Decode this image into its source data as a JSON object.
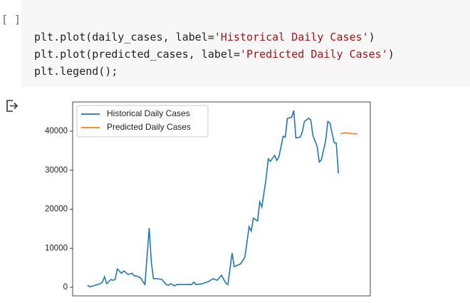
{
  "cell": {
    "prompt": "[ ]",
    "code": [
      [
        "plt.plot(daily_cases, label=",
        "'Historical Daily Cases'",
        ")"
      ],
      [
        "plt.plot(predicted_cases, label=",
        "'Predicted Daily Cases'",
        ")"
      ],
      [
        "plt.legend();"
      ]
    ]
  },
  "chart_data": {
    "type": "line",
    "xlim": [
      -7,
      133
    ],
    "ylim": [
      -2200,
      47500
    ],
    "yticks": [
      0,
      10000,
      20000,
      30000,
      40000
    ],
    "legend": "upper left",
    "series": [
      {
        "name": "Historical Daily Cases",
        "color": "#1f77b4",
        "x": [
          0,
          1,
          6,
          7,
          8,
          9,
          11,
          12,
          13,
          14,
          16,
          17,
          18,
          19,
          21,
          22,
          23,
          25,
          26,
          27,
          29,
          30,
          31,
          33,
          35,
          37,
          38,
          39,
          41,
          42,
          45,
          49,
          50,
          51,
          54,
          57,
          59,
          61,
          63,
          65,
          66,
          68,
          69,
          72,
          74,
          76,
          77,
          78,
          80,
          81,
          82,
          84,
          85,
          86,
          88,
          89,
          90,
          92,
          93,
          94,
          96,
          97,
          98,
          100,
          101,
          102,
          104,
          105,
          106,
          108,
          109,
          110,
          112,
          113,
          114,
          116,
          117,
          118
        ],
        "values": [
          500,
          100,
          900,
          1300,
          2700,
          900,
          2000,
          1800,
          2000,
          4700,
          3600,
          4200,
          3800,
          3300,
          3600,
          2900,
          2900,
          2400,
          1500,
          700,
          15200,
          6400,
          2200,
          2200,
          2000,
          700,
          500,
          900,
          400,
          700,
          700,
          700,
          1300,
          700,
          900,
          1500,
          2200,
          1800,
          3100,
          1100,
          700,
          8800,
          5300,
          6000,
          7700,
          15500,
          14400,
          17700,
          17000,
          21900,
          20600,
          27900,
          32900,
          32300,
          33800,
          32500,
          33400,
          38700,
          38500,
          43300,
          43600,
          45300,
          38300,
          38500,
          39800,
          42500,
          43300,
          42900,
          38900,
          36100,
          32100,
          32700,
          37600,
          42500,
          42100,
          37100,
          36900,
          29200
        ]
      },
      {
        "name": "Predicted Daily Cases",
        "color": "#ff7f0e",
        "x": [
          119,
          121,
          124,
          127
        ],
        "values": [
          39300,
          39600,
          39400,
          39300
        ]
      }
    ]
  }
}
